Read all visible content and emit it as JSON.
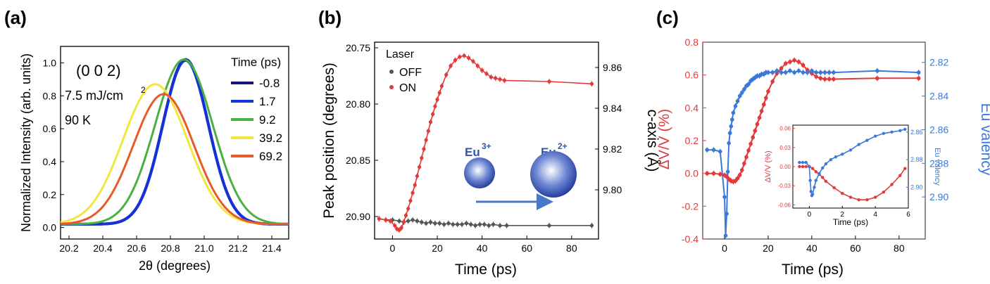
{
  "chart_data": [
    {
      "panel": "(a)",
      "type": "line",
      "xlabel": "2θ (degrees)",
      "ylabel": "Normalized Intensity (arb. units)",
      "xlim": [
        20.15,
        21.5
      ],
      "ylim": [
        -0.07,
        1.1
      ],
      "xticks": [
        "20.2",
        "20.4",
        "20.6",
        "20.8",
        "21.0",
        "21.2",
        "21.4"
      ],
      "yticks": [
        "0.0",
        "0.2",
        "0.4",
        "0.6",
        "0.8",
        "1.0"
      ],
      "annotations": [
        "(0 0 2)",
        "7.5 mJ/cm",
        "2",
        "90 K"
      ],
      "legend_title": "Time (ps)",
      "series": [
        {
          "name": "-0.8",
          "color": "#15167a",
          "center": 20.89,
          "sigma": 0.135,
          "amplitude": 1.0
        },
        {
          "name": "1.7",
          "color": "#1531d8",
          "center": 20.89,
          "sigma": 0.135,
          "amplitude": 0.995
        },
        {
          "name": "9.2",
          "color": "#49b043",
          "center": 20.88,
          "sigma": 0.17,
          "amplitude": 1.0
        },
        {
          "name": "39.2",
          "color": "#f2e640",
          "center": 20.71,
          "sigma": 0.19,
          "amplitude": 0.85
        },
        {
          "name": "69.2",
          "color": "#ea5a28",
          "center": 20.76,
          "sigma": 0.18,
          "amplitude": 0.79
        }
      ]
    },
    {
      "panel": "(b)",
      "type": "scatter",
      "xlabel": "Time (ps)",
      "ylabel": "Peak position (degrees)",
      "y2label": "c-axis (Å)",
      "xlim": [
        -8,
        92
      ],
      "ylim": [
        20.745,
        20.92
      ],
      "xticks": [
        "0",
        "20",
        "40",
        "60",
        "80"
      ],
      "yticks": [
        "20.75",
        "20.80",
        "20.85",
        "20.90"
      ],
      "y2ticks": [
        "9.80",
        "9.82",
        "9.84",
        "9.86"
      ],
      "legend_title": "Laser",
      "legend": [
        "OFF",
        "ON"
      ],
      "eu_labels": [
        "Eu",
        "3+",
        "Eu",
        "2+"
      ],
      "series": [
        {
          "name": "OFF",
          "color": "#555555",
          "x": [
            -6,
            -3,
            0,
            3,
            5,
            7,
            9,
            11,
            13,
            15,
            17,
            19,
            21,
            23,
            25,
            27,
            29,
            31,
            33,
            35,
            37,
            39,
            41,
            43,
            45,
            48,
            51,
            70,
            89
          ],
          "y": [
            20.902,
            20.903,
            20.903,
            20.904,
            20.905,
            20.904,
            20.903,
            20.904,
            20.905,
            20.906,
            20.905,
            20.906,
            20.906,
            20.907,
            20.906,
            20.907,
            20.907,
            20.907,
            20.906,
            20.907,
            20.908,
            20.907,
            20.907,
            20.908,
            20.907,
            20.908,
            20.908,
            20.908,
            20.908
          ]
        },
        {
          "name": "ON",
          "color": "#e23a3a",
          "x": [
            -6,
            -3,
            -1,
            1,
            2,
            3,
            4,
            5,
            6,
            7,
            8,
            9,
            10,
            11,
            12,
            13,
            14,
            15,
            16,
            17,
            18,
            19,
            20,
            21,
            22,
            24,
            26,
            28,
            30,
            32,
            34,
            36,
            38,
            40,
            42,
            44,
            46,
            48,
            50,
            70,
            89
          ],
          "y": [
            20.902,
            20.903,
            20.904,
            20.908,
            20.911,
            20.912,
            20.91,
            20.905,
            20.899,
            20.893,
            20.886,
            20.879,
            20.872,
            20.864,
            20.856,
            20.848,
            20.84,
            20.832,
            20.824,
            20.816,
            20.809,
            20.802,
            20.796,
            20.79,
            20.784,
            20.774,
            20.766,
            20.761,
            20.758,
            20.757,
            20.759,
            20.762,
            20.766,
            20.77,
            20.773,
            20.776,
            20.777,
            20.778,
            20.779,
            20.78,
            20.782
          ]
        }
      ]
    },
    {
      "panel": "(c)",
      "type": "scatter",
      "xlabel": "Time (ps)",
      "ylabel": "ΔV/V (%)",
      "y2label": "Eu valency",
      "xlim": [
        -10,
        92
      ],
      "ylim": [
        -0.4,
        0.8
      ],
      "y2lim": [
        2.925,
        2.808
      ],
      "xticks": [
        "0",
        "20",
        "40",
        "60",
        "80"
      ],
      "yticks": [
        "-0.4",
        "-0.2",
        "0.0",
        "0.2",
        "0.4",
        "0.6",
        "0.8"
      ],
      "y2ticks": [
        "2.82",
        "2.84",
        "2.86",
        "2.88",
        "2.90"
      ],
      "series": [
        {
          "name": "ΔV/V",
          "color": "#e23a3a",
          "x": [
            -8,
            -5,
            -2,
            0,
            1,
            2,
            3,
            4,
            5,
            6,
            7,
            8,
            9,
            10,
            11,
            12,
            13,
            14,
            15,
            16,
            17,
            18,
            19,
            20,
            22,
            24,
            26,
            28,
            30,
            32,
            34,
            36,
            38,
            40,
            42,
            44,
            46,
            48,
            50,
            70,
            89
          ],
          "y": [
            0.0,
            0.0,
            -0.005,
            -0.01,
            -0.02,
            -0.035,
            -0.045,
            -0.05,
            -0.045,
            -0.03,
            -0.01,
            0.02,
            0.06,
            0.1,
            0.14,
            0.18,
            0.22,
            0.26,
            0.3,
            0.34,
            0.38,
            0.42,
            0.46,
            0.5,
            0.56,
            0.61,
            0.64,
            0.67,
            0.68,
            0.69,
            0.68,
            0.66,
            0.63,
            0.61,
            0.59,
            0.58,
            0.575,
            0.575,
            0.575,
            0.58,
            0.58
          ]
        },
        {
          "name": "Eu valency",
          "color": "#3b78d8",
          "x": [
            -8,
            -5,
            -2,
            0,
            0.5,
            1,
            1.5,
            2,
            2.5,
            3,
            3.5,
            4,
            5,
            6,
            7,
            8,
            9,
            10,
            11,
            12,
            13,
            14,
            15,
            16,
            17,
            18,
            19,
            20,
            22,
            24,
            26,
            28,
            30,
            32,
            34,
            36,
            38,
            40,
            42,
            44,
            46,
            48,
            50,
            70,
            89
          ],
          "y": [
            2.872,
            2.872,
            2.873,
            2.9,
            2.923,
            2.91,
            2.885,
            2.868,
            2.862,
            2.858,
            2.854,
            2.85,
            2.846,
            2.843,
            2.84,
            2.838,
            2.836,
            2.834,
            2.833,
            2.831,
            2.83,
            2.829,
            2.828,
            2.828,
            2.827,
            2.827,
            2.826,
            2.826,
            2.826,
            2.825,
            2.826,
            2.826,
            2.825,
            2.826,
            2.825,
            2.826,
            2.826,
            2.825,
            2.826,
            2.826,
            2.826,
            2.826,
            2.826,
            2.825,
            2.826
          ]
        }
      ],
      "inset": {
        "xlabel": "Time (ps)",
        "ylabel": "ΔV/V (%)",
        "y2label": "Eu valency",
        "xlim": [
          -1,
          6
        ],
        "ylim": [
          -0.065,
          0.065
        ],
        "y2lim": [
          2.915,
          2.855
        ],
        "xticks": [
          "0",
          "2",
          "4",
          "6"
        ],
        "yticks": [
          "-0.06",
          "-0.03",
          "0.00",
          "0.03",
          "0.06"
        ],
        "y2ticks": [
          "2.86",
          "2.88",
          "2.90"
        ],
        "series": [
          {
            "name": "ΔV/V",
            "color": "#e23a3a",
            "x": [
              -0.6,
              -0.4,
              -0.2,
              0,
              0.2,
              0.4,
              0.6,
              0.8,
              1.0,
              1.5,
              2.0,
              2.5,
              3.0,
              3.5,
              4.0,
              4.5,
              5.0,
              5.5,
              5.8
            ],
            "y": [
              0.0,
              0.0,
              0.0,
              0.0,
              -0.003,
              -0.008,
              -0.012,
              -0.017,
              -0.023,
              -0.033,
              -0.042,
              -0.048,
              -0.052,
              -0.052,
              -0.048,
              -0.04,
              -0.028,
              -0.014,
              -0.003
            ]
          },
          {
            "name": "Eu valency",
            "color": "#3b78d8",
            "x": [
              -0.6,
              -0.4,
              -0.2,
              0,
              0.05,
              0.1,
              0.15,
              0.2,
              0.3,
              0.4,
              0.6,
              0.8,
              1.0,
              1.3,
              1.6,
              2.0,
              2.5,
              3.0,
              3.5,
              4.0,
              4.5,
              5.0,
              5.5,
              5.8
            ],
            "y": [
              2.882,
              2.882,
              2.882,
              2.885,
              2.895,
              2.903,
              2.906,
              2.905,
              2.9,
              2.895,
              2.89,
              2.886,
              2.883,
              2.88,
              2.878,
              2.876,
              2.873,
              2.869,
              2.866,
              2.863,
              2.861,
              2.86,
              2.859,
              2.858
            ]
          }
        ]
      }
    }
  ]
}
